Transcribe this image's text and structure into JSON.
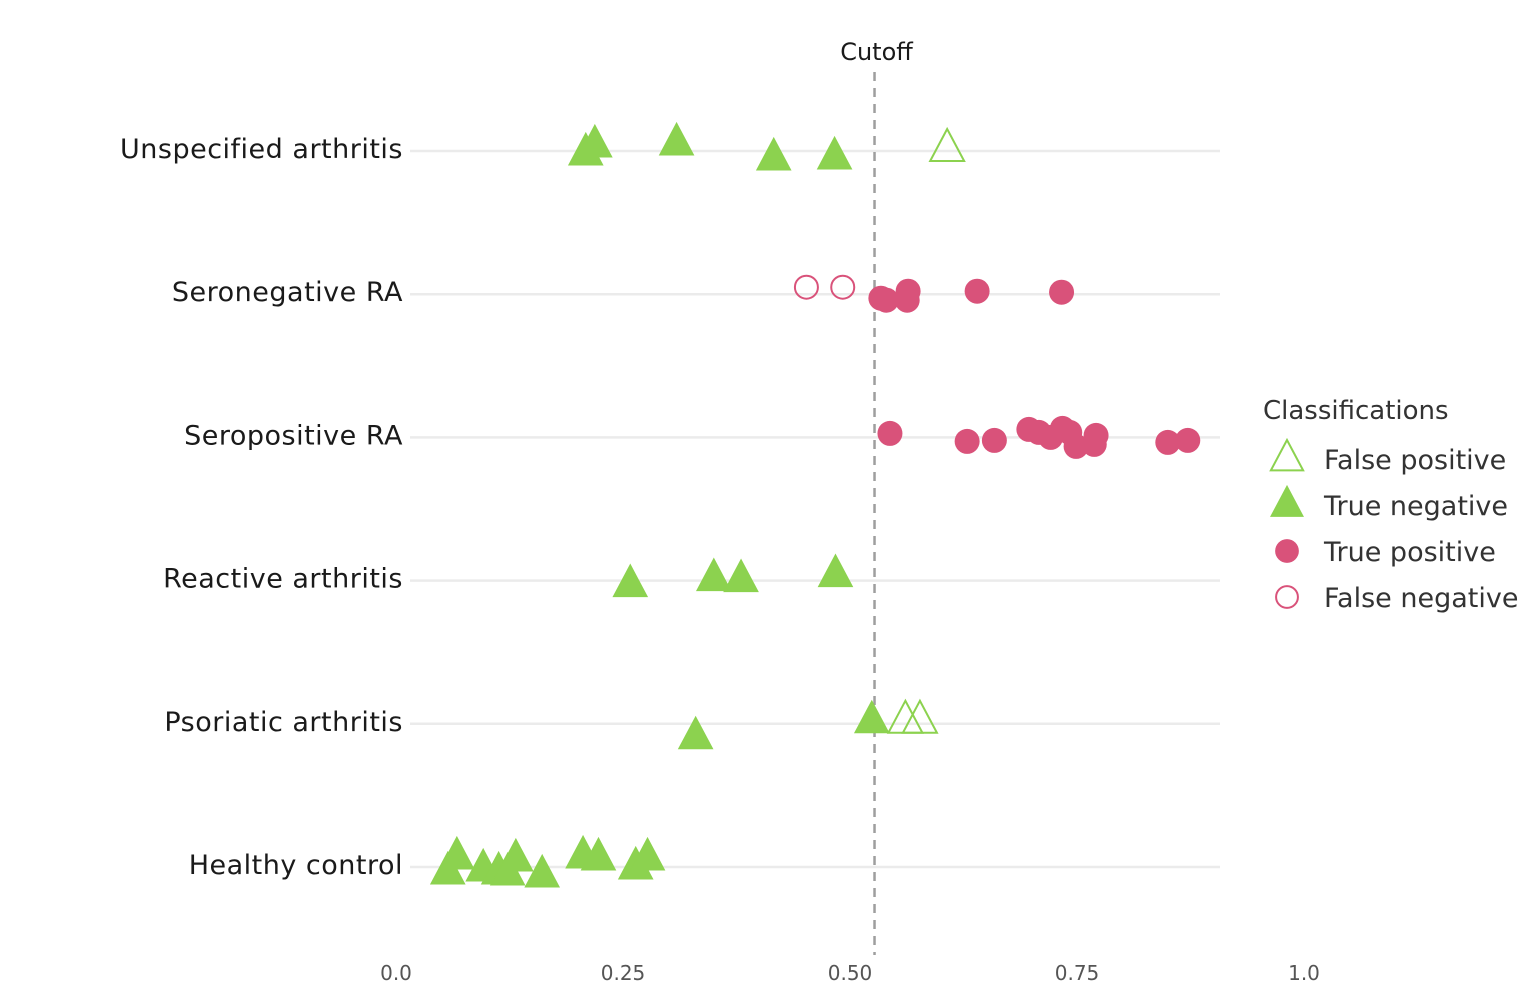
{
  "chart_data": {
    "type": "scatter",
    "xlim": [
      0,
      1
    ],
    "x_ticks": [
      "0.0",
      "0.25",
      "0.50",
      "0.75",
      "1.0"
    ],
    "x_tick_values": [
      0,
      0.25,
      0.5,
      0.75,
      1.0
    ],
    "categories": [
      "Unspecified arthritis",
      "Seronegative RA",
      "Seropositive RA",
      "Reactive arthritis",
      "Psoriatic arthritis",
      "Healthy control"
    ],
    "cutoff": {
      "label": "Cutoff",
      "x": 0.527
    },
    "grid": true,
    "legend": {
      "title": "Classifications",
      "position": "right",
      "items": [
        {
          "label": "False positive",
          "shape": "triangle-open",
          "color": "#8cd24f"
        },
        {
          "label": "True negative",
          "shape": "triangle-filled",
          "color": "#8cd24f"
        },
        {
          "label": "True positive",
          "shape": "circle-filled",
          "color": "#d9527a"
        },
        {
          "label": "False negative",
          "shape": "circle-open",
          "color": "#d9527a"
        }
      ]
    },
    "points": [
      {
        "category": "Unspecified arthritis",
        "x": 0.209,
        "class": "True negative",
        "jitter": -0.02
      },
      {
        "category": "Unspecified arthritis",
        "x": 0.219,
        "class": "True negative",
        "jitter": 0.06
      },
      {
        "category": "Unspecified arthritis",
        "x": 0.309,
        "class": "True negative",
        "jitter": 0.08
      },
      {
        "category": "Unspecified arthritis",
        "x": 0.416,
        "class": "True negative",
        "jitter": -0.07
      },
      {
        "category": "Unspecified arthritis",
        "x": 0.483,
        "class": "True negative",
        "jitter": -0.06
      },
      {
        "category": "Unspecified arthritis",
        "x": 0.607,
        "class": "False positive",
        "jitter": 0.02
      },
      {
        "category": "Seronegative RA",
        "x": 0.452,
        "class": "False negative",
        "jitter": 0.07
      },
      {
        "category": "Seronegative RA",
        "x": 0.492,
        "class": "False negative",
        "jitter": 0.07
      },
      {
        "category": "Seronegative RA",
        "x": 0.534,
        "class": "True positive",
        "jitter": -0.04
      },
      {
        "category": "Seronegative RA",
        "x": 0.54,
        "class": "True positive",
        "jitter": -0.06
      },
      {
        "category": "Seronegative RA",
        "x": 0.564,
        "class": "True positive",
        "jitter": 0.03
      },
      {
        "category": "Seronegative RA",
        "x": 0.563,
        "class": "True positive",
        "jitter": -0.06
      },
      {
        "category": "Seronegative RA",
        "x": 0.64,
        "class": "True positive",
        "jitter": 0.03
      },
      {
        "category": "Seronegative RA",
        "x": 0.733,
        "class": "True positive",
        "jitter": 0.02
      },
      {
        "category": "Seropositive RA",
        "x": 0.544,
        "class": "True positive",
        "jitter": 0.04
      },
      {
        "category": "Seropositive RA",
        "x": 0.629,
        "class": "True positive",
        "jitter": -0.04
      },
      {
        "category": "Seropositive RA",
        "x": 0.659,
        "class": "True positive",
        "jitter": -0.03
      },
      {
        "category": "Seropositive RA",
        "x": 0.697,
        "class": "True positive",
        "jitter": 0.08
      },
      {
        "category": "Seropositive RA",
        "x": 0.708,
        "class": "True positive",
        "jitter": 0.05
      },
      {
        "category": "Seropositive RA",
        "x": 0.721,
        "class": "True positive",
        "jitter": 0.0
      },
      {
        "category": "Seropositive RA",
        "x": 0.734,
        "class": "True positive",
        "jitter": 0.09
      },
      {
        "category": "Seropositive RA",
        "x": 0.742,
        "class": "True positive",
        "jitter": 0.05
      },
      {
        "category": "Seropositive RA",
        "x": 0.749,
        "class": "True positive",
        "jitter": -0.09
      },
      {
        "category": "Seropositive RA",
        "x": 0.769,
        "class": "True positive",
        "jitter": -0.07
      },
      {
        "category": "Seropositive RA",
        "x": 0.771,
        "class": "True positive",
        "jitter": 0.02
      },
      {
        "category": "Seropositive RA",
        "x": 0.85,
        "class": "True positive",
        "jitter": -0.05
      },
      {
        "category": "Seropositive RA",
        "x": 0.872,
        "class": "True positive",
        "jitter": -0.03
      },
      {
        "category": "Reactive arthritis",
        "x": 0.258,
        "class": "True negative",
        "jitter": -0.04
      },
      {
        "category": "Reactive arthritis",
        "x": 0.35,
        "class": "True negative",
        "jitter": 0.02
      },
      {
        "category": "Reactive arthritis",
        "x": 0.38,
        "class": "True negative",
        "jitter": 0.01
      },
      {
        "category": "Reactive arthritis",
        "x": 0.484,
        "class": "True negative",
        "jitter": 0.06
      },
      {
        "category": "Psoriatic arthritis",
        "x": 0.33,
        "class": "True negative",
        "jitter": -0.13
      },
      {
        "category": "Psoriatic arthritis",
        "x": 0.524,
        "class": "True negative",
        "jitter": 0.03
      },
      {
        "category": "Psoriatic arthritis",
        "x": 0.561,
        "class": "False positive",
        "jitter": 0.03
      },
      {
        "category": "Psoriatic arthritis",
        "x": 0.577,
        "class": "False positive",
        "jitter": 0.03
      },
      {
        "category": "Healthy control",
        "x": 0.057,
        "class": "True negative",
        "jitter": -0.05
      },
      {
        "category": "Healthy control",
        "x": 0.067,
        "class": "True negative",
        "jitter": 0.1
      },
      {
        "category": "Healthy control",
        "x": 0.096,
        "class": "True negative",
        "jitter": -0.02
      },
      {
        "category": "Healthy control",
        "x": 0.113,
        "class": "True negative",
        "jitter": -0.05
      },
      {
        "category": "Healthy control",
        "x": 0.123,
        "class": "True negative",
        "jitter": -0.06
      },
      {
        "category": "Healthy control",
        "x": 0.132,
        "class": "True negative",
        "jitter": 0.08
      },
      {
        "category": "Healthy control",
        "x": 0.161,
        "class": "True negative",
        "jitter": -0.08
      },
      {
        "category": "Healthy control",
        "x": 0.206,
        "class": "True negative",
        "jitter": 0.11
      },
      {
        "category": "Healthy control",
        "x": 0.223,
        "class": "True negative",
        "jitter": 0.09
      },
      {
        "category": "Healthy control",
        "x": 0.264,
        "class": "True negative",
        "jitter": 0.0
      },
      {
        "category": "Healthy control",
        "x": 0.277,
        "class": "True negative",
        "jitter": 0.09
      }
    ]
  }
}
